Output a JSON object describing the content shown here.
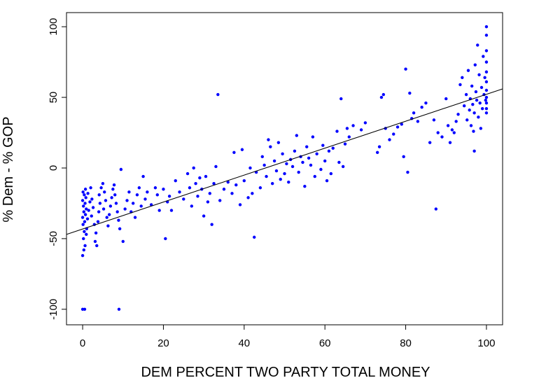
{
  "chart_data": {
    "type": "scatter",
    "title": "",
    "xlabel": "DEM PERCENT TWO PARTY TOTAL MONEY",
    "ylabel": "% Dem - % GOP",
    "xlim": [
      -4,
      104
    ],
    "ylim": [
      -111,
      110
    ],
    "xticks": [
      "0",
      "20",
      "40",
      "60",
      "80",
      "100"
    ],
    "yticks": [
      "-100",
      "-50",
      "0",
      "50",
      "100"
    ],
    "point_color": "#0000ff",
    "line_color": "#000000",
    "fit_line": {
      "x": [
        -4,
        104
      ],
      "y": [
        -47,
        56
      ]
    },
    "points": [
      [
        0,
        -100
      ],
      [
        0.5,
        -100
      ],
      [
        9,
        -100
      ],
      [
        0,
        -62
      ],
      [
        0.3,
        -58
      ],
      [
        0.6,
        -55
      ],
      [
        0.2,
        -50
      ],
      [
        0.9,
        -47
      ],
      [
        0.4,
        -45
      ],
      [
        1,
        -43
      ],
      [
        0.1,
        -40
      ],
      [
        0.5,
        -38
      ],
      [
        0,
        -35
      ],
      [
        0.7,
        -33
      ],
      [
        0.3,
        -31
      ],
      [
        0.9,
        -29
      ],
      [
        0.2,
        -27
      ],
      [
        0.6,
        -25
      ],
      [
        0,
        -23
      ],
      [
        0.8,
        -21
      ],
      [
        0.4,
        -19
      ],
      [
        0.1,
        -17
      ],
      [
        0.7,
        -15
      ],
      [
        1.2,
        -36
      ],
      [
        1.5,
        -30
      ],
      [
        1.8,
        -24
      ],
      [
        1.3,
        -18
      ],
      [
        2,
        -14
      ],
      [
        2.3,
        -22
      ],
      [
        2.6,
        -28
      ],
      [
        2.2,
        -34
      ],
      [
        2.9,
        -40
      ],
      [
        3.1,
        -52
      ],
      [
        3.5,
        -55
      ],
      [
        3.3,
        -46
      ],
      [
        3.8,
        -38
      ],
      [
        4,
        -31
      ],
      [
        4.3,
        -25
      ],
      [
        4.1,
        -19
      ],
      [
        4.6,
        -14
      ],
      [
        5,
        -11
      ],
      [
        5.4,
        -17
      ],
      [
        5.7,
        -23
      ],
      [
        5.2,
        -29
      ],
      [
        6,
        -35
      ],
      [
        6.3,
        -41
      ],
      [
        6.6,
        -33
      ],
      [
        6.9,
        -27
      ],
      [
        7.2,
        -21
      ],
      [
        7.5,
        -15
      ],
      [
        7.8,
        -12
      ],
      [
        8,
        -19
      ],
      [
        8.3,
        -25
      ],
      [
        8.6,
        -31
      ],
      [
        8.9,
        -37
      ],
      [
        9.2,
        -43
      ],
      [
        9.5,
        -1
      ],
      [
        10,
        -52
      ],
      [
        10.5,
        -29
      ],
      [
        11,
        -23
      ],
      [
        11.5,
        -17
      ],
      [
        12,
        -31
      ],
      [
        12.5,
        -25
      ],
      [
        13,
        -35
      ],
      [
        13.5,
        -19
      ],
      [
        14,
        -14
      ],
      [
        14.5,
        -27
      ],
      [
        15,
        -6
      ],
      [
        15.5,
        -22
      ],
      [
        16,
        -17
      ],
      [
        17,
        -26
      ],
      [
        18,
        -14
      ],
      [
        18.5,
        -19
      ],
      [
        19,
        -30
      ],
      [
        20,
        -15
      ],
      [
        20.5,
        -50
      ],
      [
        21,
        -24
      ],
      [
        21.5,
        -20
      ],
      [
        22,
        -30
      ],
      [
        23,
        -9
      ],
      [
        24,
        -17
      ],
      [
        25,
        -22
      ],
      [
        26,
        -4
      ],
      [
        26.5,
        -14
      ],
      [
        27,
        -27
      ],
      [
        27.5,
        0
      ],
      [
        28,
        -11
      ],
      [
        28.5,
        -20
      ],
      [
        29,
        -7
      ],
      [
        29.5,
        -15
      ],
      [
        30,
        -34
      ],
      [
        30.5,
        -6
      ],
      [
        31,
        -24
      ],
      [
        31.5,
        -18
      ],
      [
        32,
        -40
      ],
      [
        32.5,
        -11
      ],
      [
        33,
        1
      ],
      [
        33.5,
        52
      ],
      [
        34,
        -23
      ],
      [
        35,
        -15
      ],
      [
        36,
        -10
      ],
      [
        37,
        -18
      ],
      [
        37.5,
        11
      ],
      [
        38,
        -12
      ],
      [
        39,
        -26
      ],
      [
        39.5,
        13
      ],
      [
        40,
        -9
      ],
      [
        41,
        -21
      ],
      [
        41.5,
        0
      ],
      [
        42,
        -18
      ],
      [
        42.5,
        -49
      ],
      [
        43,
        -3
      ],
      [
        44,
        -14
      ],
      [
        44.5,
        8
      ],
      [
        45,
        2
      ],
      [
        45.5,
        -6
      ],
      [
        46,
        20
      ],
      [
        46.5,
        15
      ],
      [
        47,
        -11
      ],
      [
        47.5,
        5
      ],
      [
        48,
        -2
      ],
      [
        48.5,
        18
      ],
      [
        49,
        -8
      ],
      [
        49.5,
        10
      ],
      [
        50,
        -4
      ],
      [
        50.5,
        3
      ],
      [
        51,
        -10
      ],
      [
        51.5,
        6
      ],
      [
        52,
        1
      ],
      [
        52.5,
        12
      ],
      [
        53,
        23
      ],
      [
        53.5,
        -3
      ],
      [
        54,
        8
      ],
      [
        54.5,
        4
      ],
      [
        55,
        -13
      ],
      [
        55.5,
        15
      ],
      [
        56,
        7
      ],
      [
        56.5,
        2
      ],
      [
        57,
        22
      ],
      [
        57.5,
        -6
      ],
      [
        58,
        10
      ],
      [
        59,
        -1
      ],
      [
        59.5,
        16
      ],
      [
        60,
        5
      ],
      [
        60.5,
        -9
      ],
      [
        61,
        12
      ],
      [
        61.5,
        -4
      ],
      [
        62,
        14
      ],
      [
        63,
        26
      ],
      [
        63.5,
        4
      ],
      [
        64,
        49
      ],
      [
        64.5,
        1
      ],
      [
        65,
        17
      ],
      [
        65.5,
        28
      ],
      [
        66,
        22
      ],
      [
        67,
        30
      ],
      [
        69,
        27
      ],
      [
        70,
        32
      ],
      [
        73,
        11
      ],
      [
        73.5,
        15
      ],
      [
        74,
        50
      ],
      [
        74.5,
        52
      ],
      [
        75,
        28
      ],
      [
        76,
        20
      ],
      [
        77,
        24
      ],
      [
        78,
        29
      ],
      [
        79,
        31
      ],
      [
        79.5,
        8
      ],
      [
        80,
        70
      ],
      [
        80.5,
        -3
      ],
      [
        81,
        53
      ],
      [
        81.5,
        35
      ],
      [
        82,
        39
      ],
      [
        83,
        33
      ],
      [
        84,
        43
      ],
      [
        85,
        46
      ],
      [
        86,
        18
      ],
      [
        87,
        34
      ],
      [
        87.5,
        -29
      ],
      [
        88,
        25
      ],
      [
        89,
        22
      ],
      [
        90,
        49
      ],
      [
        90.5,
        30
      ],
      [
        91,
        18
      ],
      [
        91.5,
        27
      ],
      [
        92,
        25
      ],
      [
        92.5,
        33
      ],
      [
        93,
        38
      ],
      [
        93.5,
        59
      ],
      [
        94,
        64
      ],
      [
        94.5,
        44
      ],
      [
        95,
        52
      ],
      [
        95.2,
        34
      ],
      [
        95.5,
        69
      ],
      [
        95.8,
        41
      ],
      [
        96,
        49
      ],
      [
        96.2,
        30
      ],
      [
        96.4,
        58
      ],
      [
        96.6,
        45
      ],
      [
        96.8,
        26
      ],
      [
        97,
        39
      ],
      [
        97.2,
        73
      ],
      [
        97.4,
        54
      ],
      [
        97.6,
        48
      ],
      [
        97.8,
        87
      ],
      [
        98,
        36
      ],
      [
        98.2,
        66
      ],
      [
        98.4,
        46
      ],
      [
        98.6,
        28
      ],
      [
        98.8,
        57
      ],
      [
        99,
        42
      ],
      [
        99.2,
        79
      ],
      [
        99.4,
        52
      ],
      [
        99.6,
        64
      ],
      [
        99.8,
        48
      ],
      [
        100,
        100
      ],
      [
        100,
        94
      ],
      [
        100,
        83
      ],
      [
        100,
        75
      ],
      [
        100,
        68
      ],
      [
        100,
        61
      ],
      [
        100,
        55
      ],
      [
        100,
        50
      ],
      [
        100,
        46
      ],
      [
        100,
        42
      ],
      [
        100,
        39
      ],
      [
        97,
        12
      ]
    ]
  }
}
